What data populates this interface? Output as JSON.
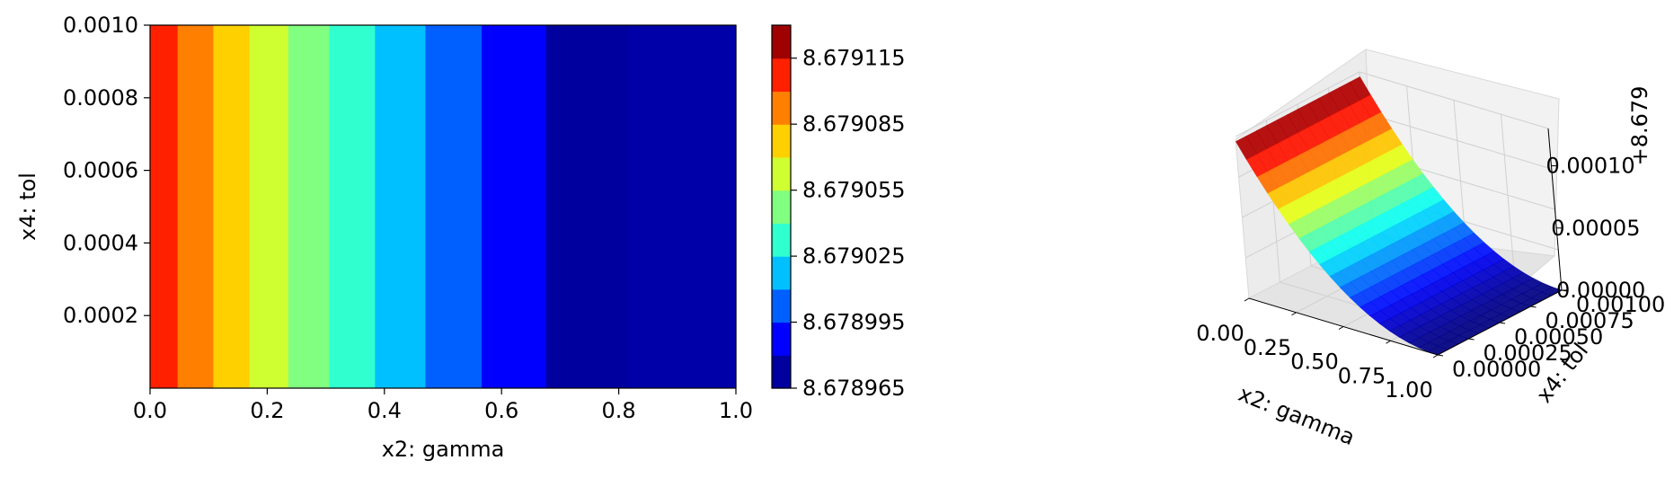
{
  "chart_data": [
    {
      "type": "contourf",
      "xlabel": "x2: gamma",
      "ylabel": "x4: tol",
      "xlim": [
        0.0,
        1.0
      ],
      "ylim": [
        0.0,
        0.001
      ],
      "xticks": [
        0.0,
        0.2,
        0.4,
        0.6,
        0.8,
        1.0
      ],
      "xtick_labels": [
        "0.0",
        "0.2",
        "0.4",
        "0.6",
        "0.8",
        "1.0"
      ],
      "yticks": [
        0.0002,
        0.0004,
        0.0006,
        0.0008,
        0.001
      ],
      "ytick_labels": [
        "0.0002",
        "0.0004",
        "0.0006",
        "0.0008",
        "0.0010"
      ],
      "bands": [
        {
          "x_from": 0.0,
          "x_to": 0.047,
          "level_index": 9
        },
        {
          "x_from": 0.047,
          "x_to": 0.108,
          "level_index": 8
        },
        {
          "x_from": 0.108,
          "x_to": 0.17,
          "level_index": 7
        },
        {
          "x_from": 0.17,
          "x_to": 0.236,
          "level_index": 6
        },
        {
          "x_from": 0.236,
          "x_to": 0.306,
          "level_index": 5
        },
        {
          "x_from": 0.306,
          "x_to": 0.384,
          "level_index": 4
        },
        {
          "x_from": 0.384,
          "x_to": 0.47,
          "level_index": 3
        },
        {
          "x_from": 0.47,
          "x_to": 0.566,
          "level_index": 2
        },
        {
          "x_from": 0.566,
          "x_to": 0.676,
          "level_index": 1
        },
        {
          "x_from": 0.676,
          "x_to": 0.816,
          "level_index": 0
        },
        {
          "x_from": 0.816,
          "x_to": 1.0,
          "level_index": -1
        }
      ],
      "colorbar": {
        "levels": [
          8.678965,
          8.67898,
          8.678995,
          8.67901,
          8.679025,
          8.67904,
          8.679055,
          8.67907,
          8.679085,
          8.6791,
          8.679115,
          8.67913
        ],
        "tick_labels": [
          "8.678965",
          "8.678995",
          "8.679025",
          "8.679055",
          "8.679085",
          "8.679115"
        ],
        "colors": [
          "#00009f",
          "#0000ff",
          "#0060ff",
          "#00c0ff",
          "#30ffcf",
          "#80ff80",
          "#cfff30",
          "#ffd000",
          "#ff7f00",
          "#ff2000",
          "#9f0000"
        ]
      },
      "band_colors": {
        "-1": "#0000a8"
      }
    },
    {
      "type": "surface3d",
      "xlabel": "x2: gamma",
      "ylabel": "x4: tol",
      "zlabel": "+8.679",
      "xtick_labels": [
        "0.00",
        "0.25",
        "0.50",
        "0.75",
        "1.00"
      ],
      "ytick_labels": [
        "0.00000",
        "0.00025",
        "0.00050",
        "0.00075",
        "0.00100"
      ],
      "ztick_labels": [
        "0.00000",
        "0.00005",
        "0.00010"
      ],
      "function": "z = 0.000126 * (1 - x2)^2 offset from 8.679, constant in x4",
      "z_range": [
        0.0,
        0.000126
      ],
      "colormap": "jet"
    }
  ]
}
